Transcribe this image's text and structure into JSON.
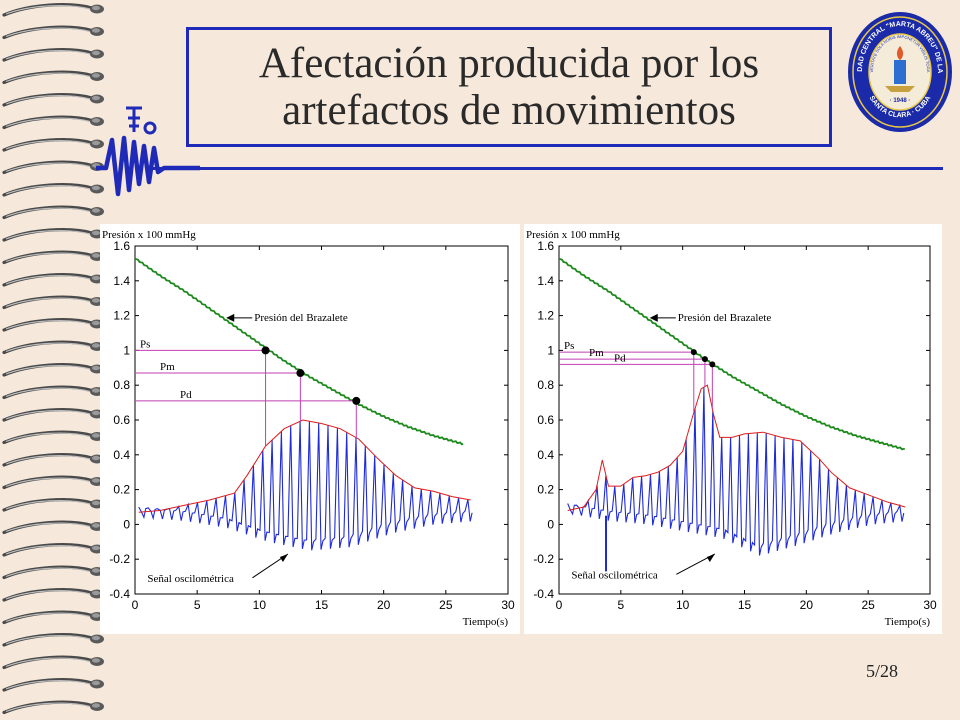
{
  "slide": {
    "title_line1": "Afectación producida por los",
    "title_line2": "artefactos de movimientos",
    "page_number": "5/28",
    "seal_text_top": "UNIVERSIDAD CENTRAL \"MARTA ABREU\" DE LAS VILLAS",
    "seal_text_bottom": "SANTA CLARA · CUBA",
    "seal_motto": "VERITATE SOLA NOBIS IMPONETUR VIRILIS TOGA",
    "seal_year": "· 1948 ·",
    "colors": {
      "title_frame": "#1f2bb8",
      "background": "#f6e9db",
      "cuff_curve": "#1b8a1b",
      "oscillometric": "#1f2bd6",
      "envelope": "#dd1b1b",
      "markers": "#c23fb5"
    }
  },
  "chart_data": [
    {
      "type": "line",
      "ylabel": "Presión  x 100 mmHg",
      "xlabel": "Tiempo(s)",
      "xlim": [
        0,
        30
      ],
      "ylim": [
        -0.4,
        1.6
      ],
      "x_ticks": [
        "0",
        "5",
        "10",
        "15",
        "20",
        "25",
        "30"
      ],
      "y_ticks": [
        "-0.4",
        "-0.2",
        "0",
        "0.2",
        "0.4",
        "0.6",
        "0.8",
        "1",
        "1.2",
        "1.4",
        "1.6"
      ],
      "series": [
        {
          "name": "Presión del Brazalete",
          "x": [
            0,
            2,
            4,
            6,
            8,
            10,
            12,
            14,
            16,
            18,
            20,
            22,
            24,
            26.5
          ],
          "y": [
            1.53,
            1.43,
            1.34,
            1.24,
            1.14,
            1.04,
            0.94,
            0.85,
            0.77,
            0.69,
            0.62,
            0.56,
            0.51,
            0.46
          ]
        },
        {
          "x": [
            0.3,
            2,
            4,
            6,
            8,
            9,
            10.5,
            12,
            13.5,
            15,
            16.5,
            18,
            19.5,
            21,
            22.5,
            24,
            25.5,
            27
          ],
          "y": [
            0.07,
            0.08,
            0.11,
            0.14,
            0.18,
            0.28,
            0.45,
            0.55,
            0.6,
            0.58,
            0.55,
            0.49,
            0.38,
            0.28,
            0.21,
            0.19,
            0.16,
            0.14
          ]
        }
      ],
      "oscillation": {
        "beat_period": 0.75,
        "start": 0.3,
        "end": 27,
        "trough": [
          0.04,
          0.02,
          -0.02,
          -0.1,
          -0.15,
          -0.13,
          -0.05,
          0.0,
          0.02
        ]
      },
      "points": [
        {
          "label": "Ps",
          "x": 10.5,
          "y": 1.0
        },
        {
          "label": "Pm",
          "x": 13.3,
          "y": 0.87
        },
        {
          "label": "Pd",
          "x": 17.8,
          "y": 0.71
        }
      ],
      "annotations": [
        {
          "text": "Presión del Brazalete",
          "x": 7.5,
          "y": 1.17
        },
        {
          "text": "Señal oscilométrica",
          "x": 1,
          "y": -0.33
        }
      ]
    },
    {
      "type": "line",
      "ylabel": "Presión  x 100 mmHg",
      "xlabel": "Tiempo(s)",
      "xlim": [
        0,
        30
      ],
      "ylim": [
        -0.4,
        1.6
      ],
      "x_ticks": [
        "0",
        "5",
        "10",
        "15",
        "20",
        "25",
        "30"
      ],
      "y_ticks": [
        "-0.4",
        "-0.2",
        "0",
        "0.2",
        "0.4",
        "0.6",
        "0.8",
        "1",
        "1.2",
        "1.4",
        "1.6"
      ],
      "series": [
        {
          "name": "Presión del Brazalete",
          "x": [
            0,
            2,
            4,
            6,
            8,
            10,
            12,
            14,
            16,
            18,
            20,
            22,
            24,
            26,
            28
          ],
          "y": [
            1.53,
            1.43,
            1.34,
            1.24,
            1.14,
            1.04,
            0.94,
            0.85,
            0.77,
            0.69,
            0.62,
            0.56,
            0.51,
            0.47,
            0.43
          ]
        },
        {
          "x": [
            0.7,
            2,
            3,
            3.5,
            4,
            5,
            6,
            7,
            8,
            9,
            10,
            10.8,
            11.5,
            12,
            12.5,
            13,
            14,
            15,
            16.5,
            18,
            19.5,
            21,
            22,
            23.5,
            25,
            26.5,
            28
          ],
          "y": [
            0.08,
            0.1,
            0.2,
            0.37,
            0.22,
            0.22,
            0.27,
            0.28,
            0.3,
            0.34,
            0.42,
            0.62,
            0.78,
            0.8,
            0.63,
            0.5,
            0.5,
            0.52,
            0.53,
            0.5,
            0.48,
            0.38,
            0.3,
            0.21,
            0.17,
            0.13,
            0.1
          ]
        }
      ],
      "oscillation": {
        "beat_period": 0.72,
        "start": 0.7,
        "end": 28,
        "trough": [
          0.06,
          0.02,
          0.0,
          -0.04,
          -0.08,
          -0.18,
          -0.12,
          -0.05,
          0.0,
          0.02
        ]
      },
      "points": [
        {
          "label": "Ps",
          "x": 10.9,
          "y": 0.99
        },
        {
          "label": "Pm",
          "x": 11.8,
          "y": 0.95
        },
        {
          "label": "Pd",
          "x": 12.4,
          "y": 0.92
        }
      ],
      "annotations": [
        {
          "text": "Presión del Brazalete",
          "x": 7.5,
          "y": 1.17
        },
        {
          "text": "Señal oscilométrica",
          "x": 1,
          "y": -0.31
        }
      ]
    }
  ]
}
